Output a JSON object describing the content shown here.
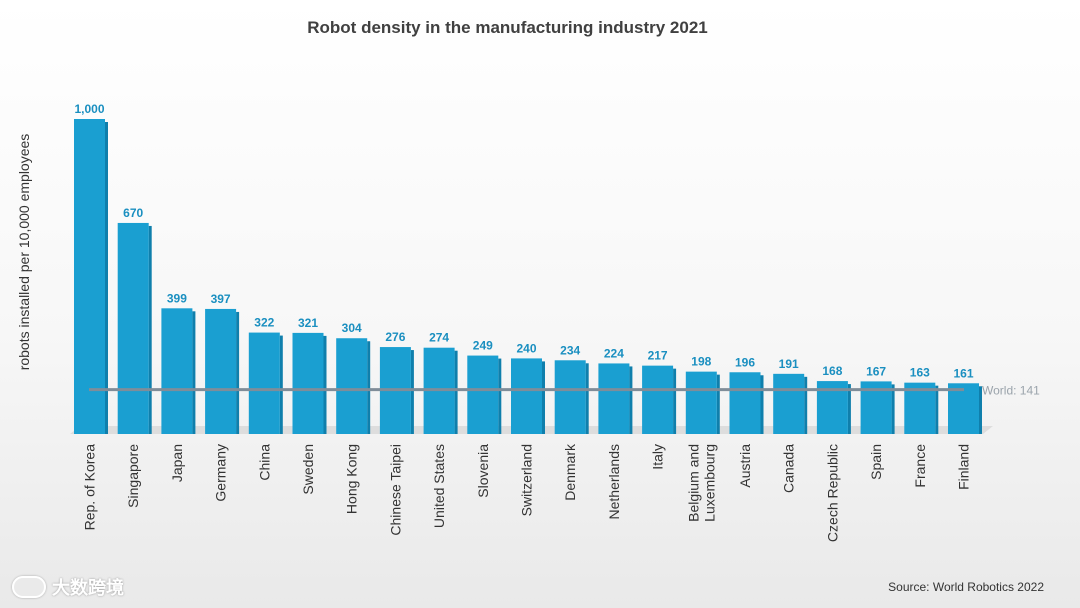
{
  "chart_data": {
    "type": "bar",
    "title": "Robot density in the manufacturing industry 2021",
    "ylabel": "robots installed per 10,000 employees",
    "xlabel": "",
    "categories": [
      "Rep. of Korea",
      "Singapore",
      "Japan",
      "Germany",
      "China",
      "Sweden",
      "Hong Kong",
      "Chinese Taipei",
      "United States",
      "Slovenia",
      "Switzerland",
      "Denmark",
      "Netherlands",
      "Italy",
      "Belgium and Luxembourg",
      "Austria",
      "Canada",
      "Czech Republic",
      "Spain",
      "France",
      "Finland"
    ],
    "category_lines": [
      [
        "Rep. of Korea"
      ],
      [
        "Singapore"
      ],
      [
        "Japan"
      ],
      [
        "Germany"
      ],
      [
        "China"
      ],
      [
        "Sweden"
      ],
      [
        "Hong Kong"
      ],
      [
        "Chinese Taipei"
      ],
      [
        "United States"
      ],
      [
        "Slovenia"
      ],
      [
        "Switzerland"
      ],
      [
        "Denmark"
      ],
      [
        "Netherlands"
      ],
      [
        "Italy"
      ],
      [
        "Belgium and",
        "Luxembourg"
      ],
      [
        "Austria"
      ],
      [
        "Canada"
      ],
      [
        "Czech Republic"
      ],
      [
        "Spain"
      ],
      [
        "France"
      ],
      [
        "Finland"
      ]
    ],
    "values": [
      1000,
      670,
      399,
      397,
      322,
      321,
      304,
      276,
      274,
      249,
      240,
      234,
      224,
      217,
      198,
      196,
      191,
      168,
      167,
      163,
      161
    ],
    "value_labels": [
      "1,000",
      "670",
      "399",
      "397",
      "322",
      "321",
      "304",
      "276",
      "274",
      "249",
      "240",
      "234",
      "224",
      "217",
      "198",
      "196",
      "191",
      "168",
      "167",
      "163",
      "161"
    ],
    "reference_line": {
      "label": "World: 141",
      "value": 141
    },
    "ylim": [
      0,
      1000
    ],
    "grid": false,
    "colors": {
      "bar": "#1a9fd1",
      "value_label": "#1a8fc0",
      "reference_line": "#7f8d99",
      "reference_label": "#9aa3ab"
    }
  },
  "source": "Source: World Robotics 2022",
  "watermark": {
    "text": "大数跨境",
    "icon": "logo-icon"
  }
}
